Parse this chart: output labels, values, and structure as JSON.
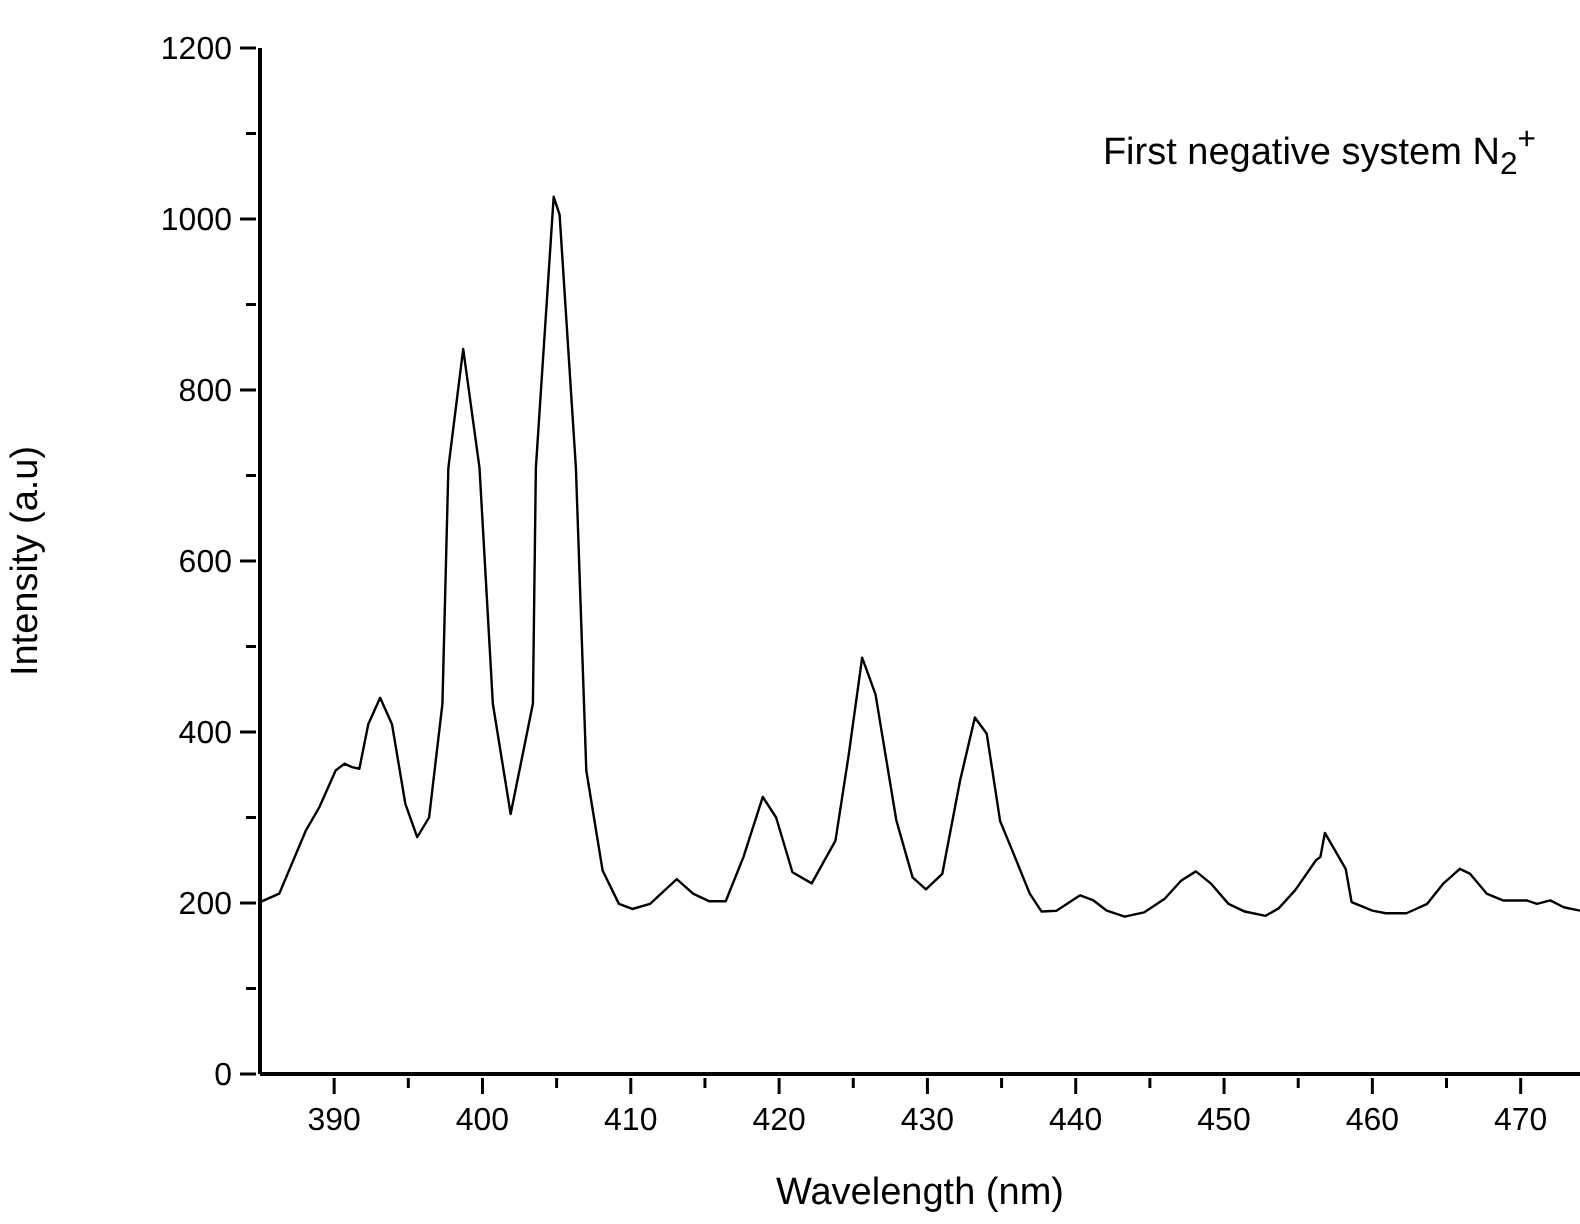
{
  "chart_data": {
    "type": "line",
    "xlabel": "Wavelength (nm)",
    "ylabel": "Intensity (a.u)",
    "annotations": [
      "First negative system N$_{2}$$^{+}$"
    ],
    "xlim": [
      385,
      474
    ],
    "ylim": [
      0,
      1200
    ],
    "xticks": [
      390,
      {
        "value": 395,
        "label": null
      },
      400,
      {
        "value": 405,
        "label": null
      },
      410,
      {
        "value": 415,
        "label": null
      },
      420,
      {
        "value": 425,
        "label": null
      },
      430,
      {
        "value": 435,
        "label": null
      },
      440,
      {
        "value": 445,
        "label": null
      },
      450,
      {
        "value": 455,
        "label": null
      },
      460,
      {
        "value": 465,
        "label": null
      },
      470
    ],
    "yticks": [
      0,
      {
        "value": 100,
        "label": null
      },
      200,
      {
        "value": 300,
        "label": null
      },
      400,
      {
        "value": 500,
        "label": null
      },
      600,
      {
        "value": 700,
        "label": null
      },
      800,
      {
        "value": 900,
        "label": null
      },
      1000,
      {
        "value": 1100,
        "label": null
      },
      1200
    ],
    "grid": false,
    "marker": "none",
    "line_style": "solid",
    "series": [
      {
        "color": "#000000",
        "x": [
          385.0,
          386.3,
          388.1,
          389.0,
          390.1,
          390.7,
          391.2,
          391.7,
          392.3,
          393.1,
          393.9,
          394.8,
          395.6,
          396.4,
          397.3,
          397.7,
          398.7,
          399.8,
          400.7,
          401.9,
          403.4,
          403.6,
          404.8,
          405.2,
          406.3,
          407.0,
          408.1,
          409.2,
          410.1,
          411.3,
          413.1,
          414.2,
          415.3,
          416.4,
          417.6,
          418.9,
          419.8,
          420.9,
          422.2,
          423.8,
          424.7,
          425.6,
          426.5,
          427.9,
          429.0,
          429.9,
          431.0,
          432.2,
          433.2,
          434.0,
          434.9,
          435.8,
          436.9,
          437.7,
          438.7,
          440.3,
          441.2,
          442.1,
          443.3,
          444.6,
          446.0,
          447.1,
          448.1,
          449.1,
          450.3,
          451.4,
          452.8,
          453.7,
          454.8,
          456.2,
          456.5,
          456.8,
          457.5,
          458.2,
          458.6,
          460.0,
          460.9,
          462.3,
          463.7,
          464.8,
          465.9,
          466.6,
          467.7,
          468.8,
          470.4,
          471.1,
          472.0,
          472.9,
          474.0
        ],
        "values": [
          201,
          211,
          285,
          312,
          355,
          363,
          359,
          357,
          409,
          440,
          409,
          316,
          277,
          300,
          433,
          709,
          848,
          709,
          433,
          304,
          433,
          709,
          1026,
          1005,
          709,
          355,
          238,
          199,
          193,
          199,
          228,
          211,
          202,
          202,
          254,
          324,
          300,
          236,
          223,
          273,
          374,
          487,
          444,
          297,
          230,
          216,
          234,
          343,
          417,
          398,
          296,
          258,
          211,
          190,
          191,
          209,
          203,
          191,
          184,
          189,
          205,
          226,
          237,
          223,
          199,
          190,
          185,
          194,
          215,
          250,
          254,
          282,
          261,
          240,
          201,
          191,
          188,
          188,
          199,
          223,
          240,
          234,
          211,
          203,
          203,
          199,
          203,
          195,
          191
        ]
      }
    ]
  }
}
